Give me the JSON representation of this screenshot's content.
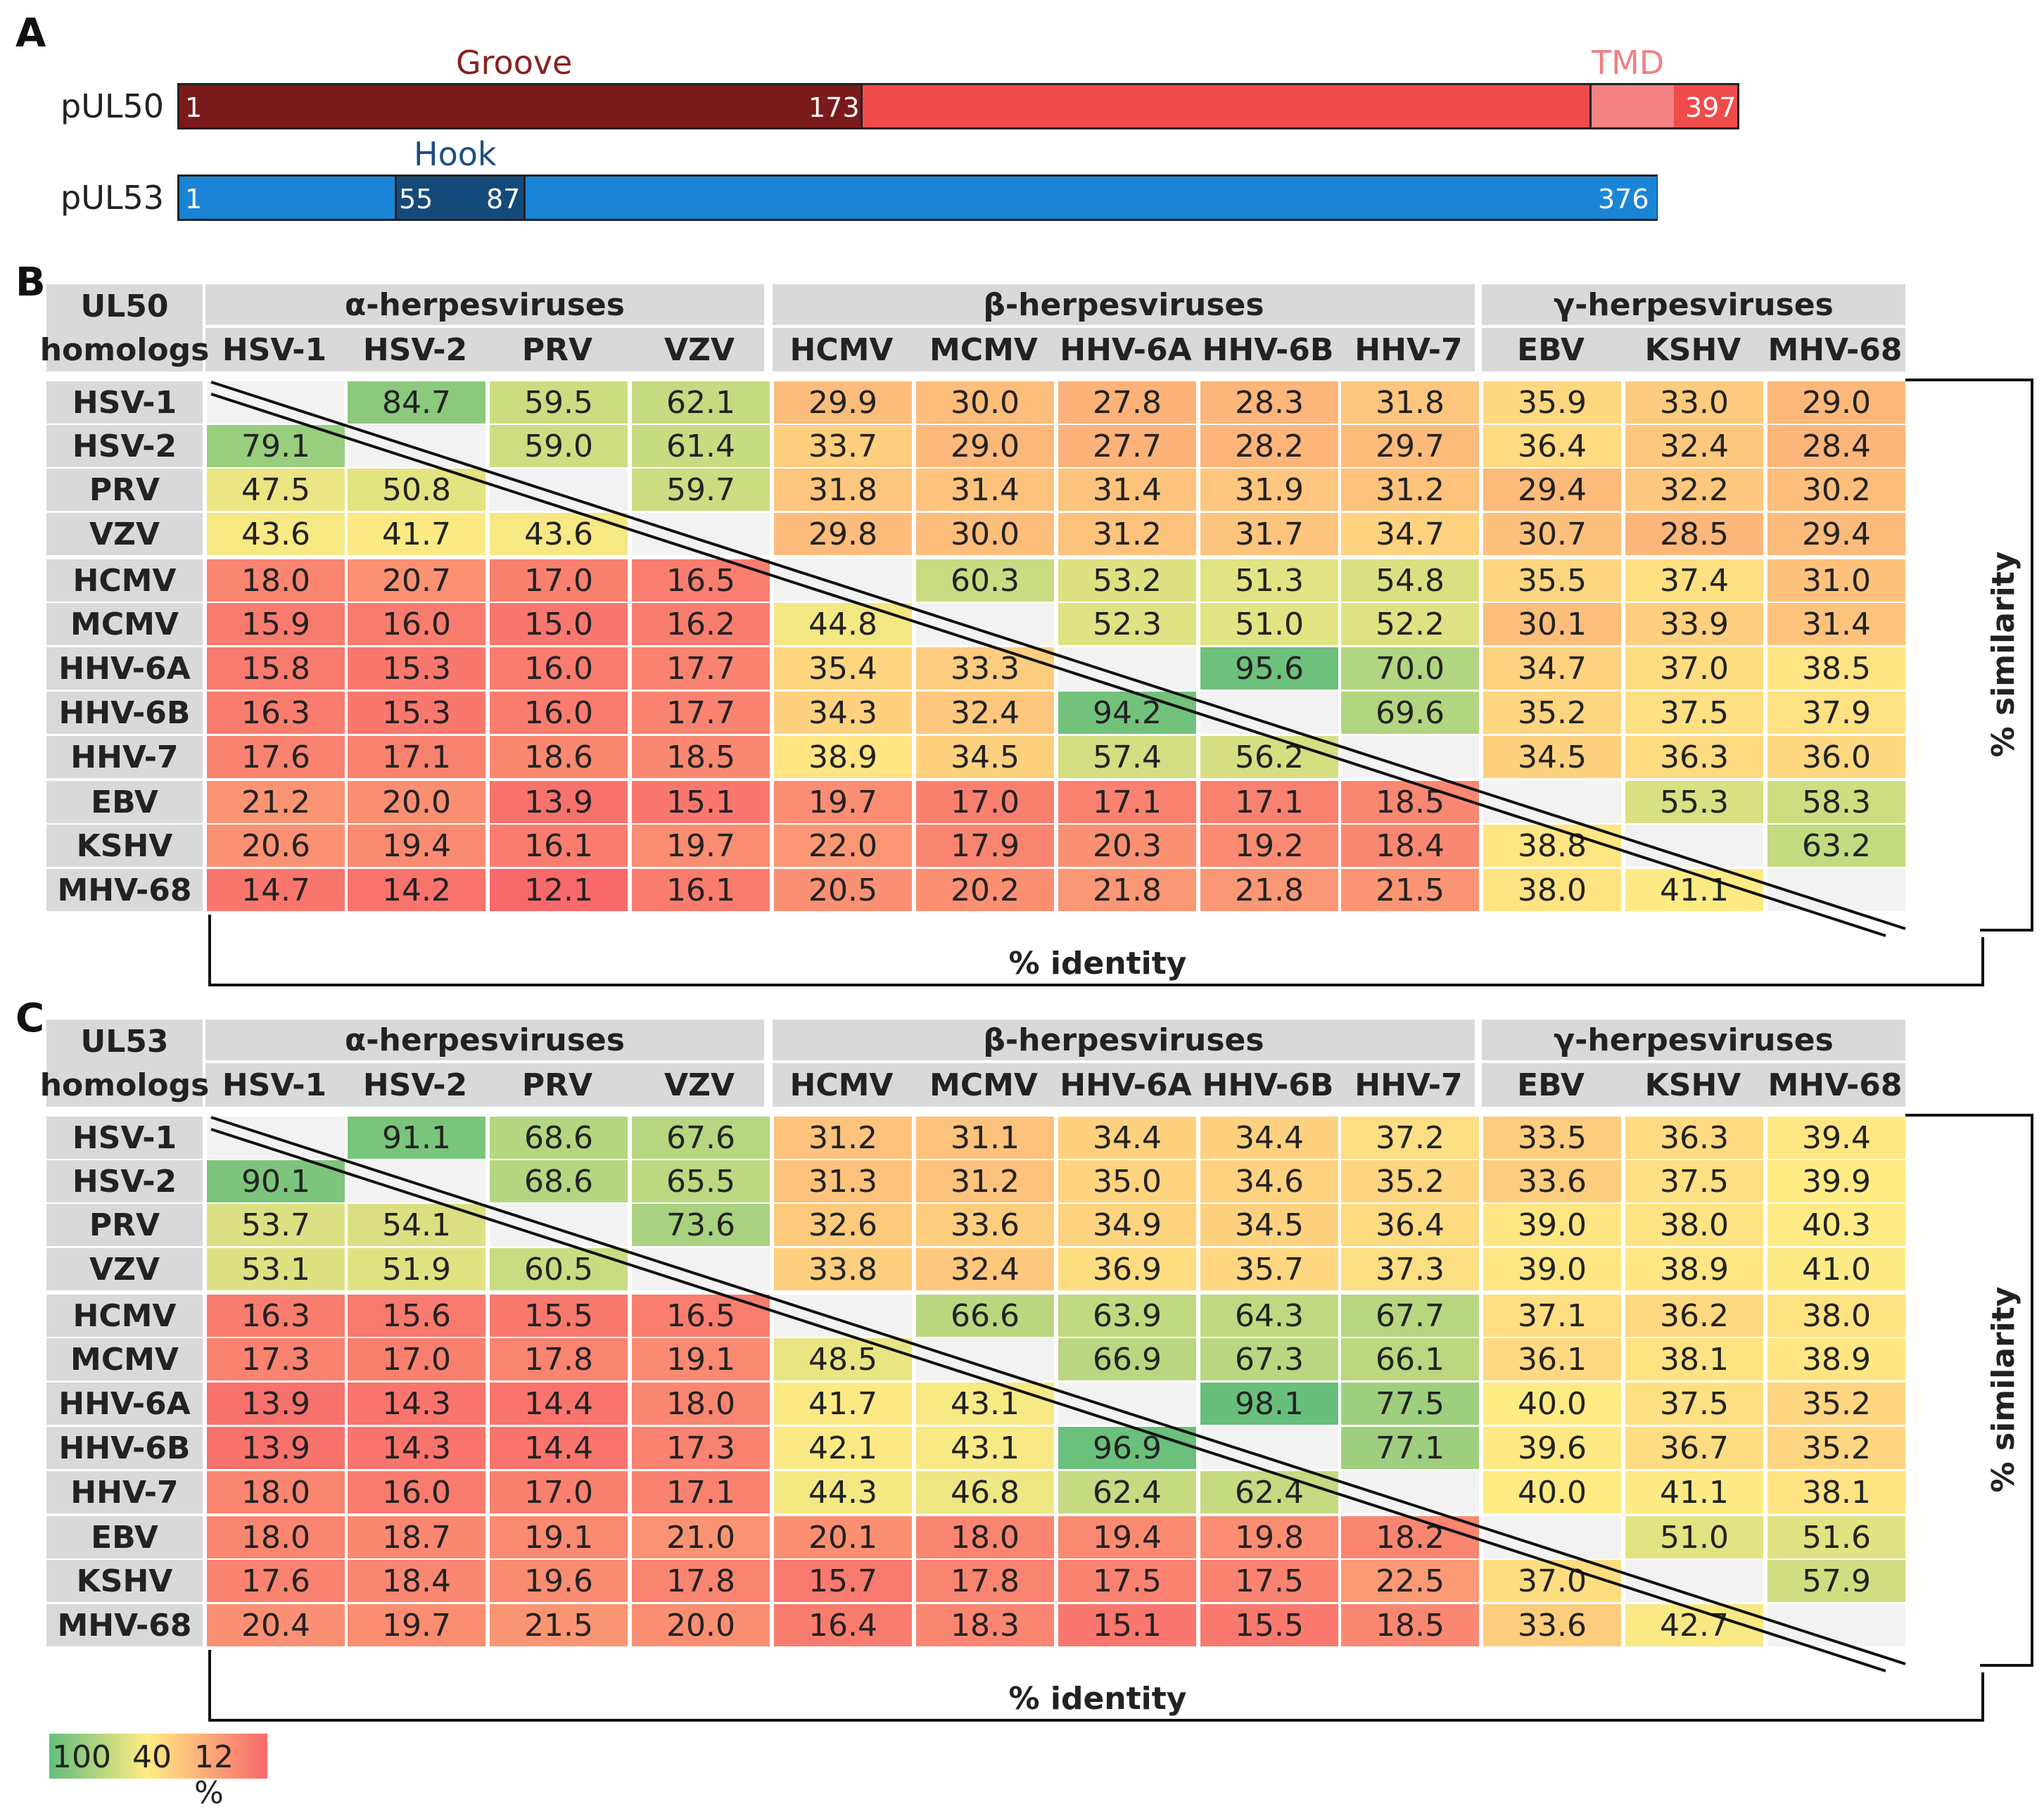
{
  "panel_a": {
    "letter": "A",
    "pUL50": {
      "name": "pUL50",
      "length": 397,
      "groove": {
        "label": "Groove",
        "start": 1,
        "end": 173
      },
      "tmd": {
        "label": "TMD"
      },
      "labels": [
        "1",
        "173",
        "397"
      ]
    },
    "pUL53": {
      "name": "pUL53",
      "length": 376,
      "hook": {
        "label": "Hook",
        "start": 55,
        "end": 87
      },
      "labels": [
        "1",
        "55",
        "87",
        "376"
      ]
    }
  },
  "panel_b": {
    "letter": "B",
    "corner_label": [
      "UL50",
      "homologs"
    ],
    "groups": [
      "α-herpesviruses",
      "β-herpesviruses",
      "γ-herpesviruses"
    ],
    "viruses": [
      "HSV-1",
      "HSV-2",
      "PRV",
      "VZV",
      "HCMV",
      "MCMV",
      "HHV-6A",
      "HHV-6B",
      "HHV-7",
      "EBV",
      "KSHV",
      "MHV-68"
    ],
    "similarity_label": "% similarity",
    "identity_label": "% identity"
  },
  "panel_c": {
    "letter": "C",
    "corner_label": [
      "UL53",
      "homologs"
    ],
    "groups": [
      "α-herpesviruses",
      "β-herpesviruses",
      "γ-herpesviruses"
    ],
    "viruses": [
      "HSV-1",
      "HSV-2",
      "PRV",
      "VZV",
      "HCMV",
      "MCMV",
      "HHV-6A",
      "HHV-6B",
      "HHV-7",
      "EBV",
      "KSHV",
      "MHV-68"
    ],
    "similarity_label": "% similarity",
    "identity_label": "% identity"
  },
  "legend": {
    "labels": [
      "100",
      "40",
      "12 %"
    ]
  },
  "colors": {
    "groove": "#7b1a1a",
    "ul50_body": "#f04b4b",
    "tmd": "#f48282",
    "ul53_body": "#1a85d6",
    "hook": "#144a7a"
  },
  "chart_data": [
    {
      "type": "heatmap",
      "title": "UL50 homologs",
      "upper_triangle": "% similarity",
      "lower_triangle": "% identity",
      "color_scale": {
        "max": 100,
        "mid": 40,
        "min": 12
      },
      "rows": [
        "HSV-1",
        "HSV-2",
        "PRV",
        "VZV",
        "HCMV",
        "MCMV",
        "HHV-6A",
        "HHV-6B",
        "HHV-7",
        "EBV",
        "KSHV",
        "MHV-68"
      ],
      "cols": [
        "HSV-1",
        "HSV-2",
        "PRV",
        "VZV",
        "HCMV",
        "MCMV",
        "HHV-6A",
        "HHV-6B",
        "HHV-7",
        "EBV",
        "KSHV",
        "MHV-68"
      ],
      "values": [
        [
          null,
          84.7,
          59.5,
          62.1,
          29.9,
          30.0,
          27.8,
          28.3,
          31.8,
          35.9,
          33.0,
          29.0
        ],
        [
          79.1,
          null,
          59.0,
          61.4,
          33.7,
          29.0,
          27.7,
          28.2,
          29.7,
          36.4,
          32.4,
          28.4
        ],
        [
          47.5,
          50.8,
          null,
          59.7,
          31.8,
          31.4,
          31.4,
          31.9,
          31.2,
          29.4,
          32.2,
          30.2
        ],
        [
          43.6,
          41.7,
          43.6,
          null,
          29.8,
          30.0,
          31.2,
          31.7,
          34.7,
          30.7,
          28.5,
          29.4
        ],
        [
          18.0,
          20.7,
          17.0,
          16.5,
          null,
          60.3,
          53.2,
          51.3,
          54.8,
          35.5,
          37.4,
          31.0
        ],
        [
          15.9,
          16.0,
          15.0,
          16.2,
          44.8,
          null,
          52.3,
          51.0,
          52.2,
          30.1,
          33.9,
          31.4
        ],
        [
          15.8,
          15.3,
          16.0,
          17.7,
          35.4,
          33.3,
          null,
          95.6,
          70.0,
          34.7,
          37.0,
          38.5
        ],
        [
          16.3,
          15.3,
          16.0,
          17.7,
          34.3,
          32.4,
          94.2,
          null,
          69.6,
          35.2,
          37.5,
          37.9
        ],
        [
          17.6,
          17.1,
          18.6,
          18.5,
          38.9,
          34.5,
          57.4,
          56.2,
          null,
          34.5,
          36.3,
          36.0
        ],
        [
          21.2,
          20.0,
          13.9,
          15.1,
          19.7,
          17.0,
          17.1,
          17.1,
          18.5,
          null,
          55.3,
          58.3
        ],
        [
          20.6,
          19.4,
          16.1,
          19.7,
          22.0,
          17.9,
          20.3,
          19.2,
          18.4,
          38.8,
          null,
          63.2
        ],
        [
          14.7,
          14.2,
          12.1,
          16.1,
          20.5,
          20.2,
          21.8,
          21.8,
          21.5,
          38.0,
          41.1,
          null
        ]
      ]
    },
    {
      "type": "heatmap",
      "title": "UL53 homologs",
      "upper_triangle": "% similarity",
      "lower_triangle": "% identity",
      "color_scale": {
        "max": 100,
        "mid": 40,
        "min": 12
      },
      "rows": [
        "HSV-1",
        "HSV-2",
        "PRV",
        "VZV",
        "HCMV",
        "MCMV",
        "HHV-6A",
        "HHV-6B",
        "HHV-7",
        "EBV",
        "KSHV",
        "MHV-68"
      ],
      "cols": [
        "HSV-1",
        "HSV-2",
        "PRV",
        "VZV",
        "HCMV",
        "MCMV",
        "HHV-6A",
        "HHV-6B",
        "HHV-7",
        "EBV",
        "KSHV",
        "MHV-68"
      ],
      "values": [
        [
          null,
          91.1,
          68.6,
          67.6,
          31.2,
          31.1,
          34.4,
          34.4,
          37.2,
          33.5,
          36.3,
          39.4
        ],
        [
          90.1,
          null,
          68.6,
          65.5,
          31.3,
          31.2,
          35.0,
          34.6,
          35.2,
          33.6,
          37.5,
          39.9
        ],
        [
          53.7,
          54.1,
          null,
          73.6,
          32.6,
          33.6,
          34.9,
          34.5,
          36.4,
          39.0,
          38.0,
          40.3
        ],
        [
          53.1,
          51.9,
          60.5,
          null,
          33.8,
          32.4,
          36.9,
          35.7,
          37.3,
          39.0,
          38.9,
          41.0
        ],
        [
          16.3,
          15.6,
          15.5,
          16.5,
          null,
          66.6,
          63.9,
          64.3,
          67.7,
          37.1,
          36.2,
          38.0
        ],
        [
          17.3,
          17.0,
          17.8,
          19.1,
          48.5,
          null,
          66.9,
          67.3,
          66.1,
          36.1,
          38.1,
          38.9
        ],
        [
          13.9,
          14.3,
          14.4,
          18.0,
          41.7,
          43.1,
          null,
          98.1,
          77.5,
          40.0,
          37.5,
          35.2
        ],
        [
          13.9,
          14.3,
          14.4,
          17.3,
          42.1,
          43.1,
          96.9,
          null,
          77.1,
          39.6,
          36.7,
          35.2
        ],
        [
          18.0,
          16.0,
          17.0,
          17.1,
          44.3,
          46.8,
          62.4,
          62.4,
          null,
          40.0,
          41.1,
          38.1
        ],
        [
          18.0,
          18.7,
          19.1,
          21.0,
          20.1,
          18.0,
          19.4,
          19.8,
          18.2,
          null,
          51.0,
          51.6
        ],
        [
          17.6,
          18.4,
          19.6,
          17.8,
          15.7,
          17.8,
          17.5,
          17.5,
          22.5,
          37.0,
          null,
          57.9
        ],
        [
          20.4,
          19.7,
          21.5,
          20.0,
          16.4,
          18.3,
          15.1,
          15.5,
          18.5,
          33.6,
          42.7,
          null
        ]
      ]
    }
  ]
}
